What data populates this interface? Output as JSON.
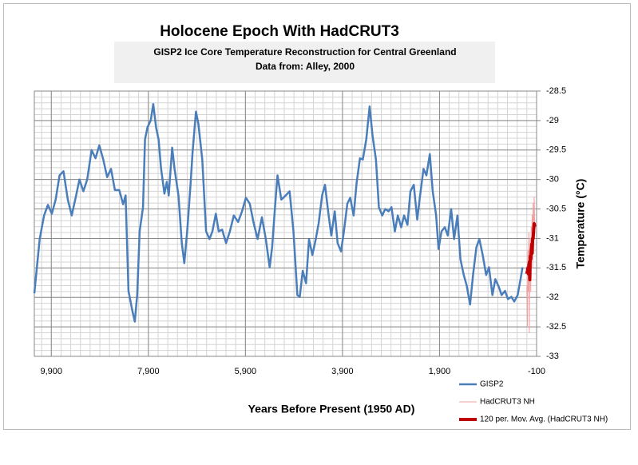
{
  "chart_data": {
    "type": "line",
    "title": "Holocene Epoch With HadCRUT3",
    "subtitle": [
      "GISP2 Ice Core Temperature Reconstruction for Central Greenland",
      "Data from: Alley, 2000"
    ],
    "x_label": "Years Before Present (1950 AD)",
    "y_label": "Temperature (°C)",
    "xlim": [
      10250,
      -100
    ],
    "xticks": [
      {
        "value": 9900,
        "label": "9,900"
      },
      {
        "value": 7900,
        "label": "7,900"
      },
      {
        "value": 5900,
        "label": "5,900"
      },
      {
        "value": 3900,
        "label": "3,900"
      },
      {
        "value": 1900,
        "label": "1,900"
      },
      -100
    ],
    "ylim": [
      -33,
      -28.5
    ],
    "yticks": [
      -28.5,
      -29,
      -29.5,
      -30,
      -30.5,
      -31,
      -31.5,
      -32,
      -32.5,
      -33
    ],
    "y_axis_side": "right",
    "grid": true,
    "legend": "bottom-right",
    "series": [
      {
        "name": "GISP2",
        "color": "#4a7ebb",
        "width": 2.5,
        "x": [
          10250,
          10140,
          10050,
          9970,
          9890,
          9810,
          9730,
          9650,
          9560,
          9480,
          9400,
          9320,
          9240,
          9160,
          9070,
          8990,
          8910,
          8830,
          8750,
          8670,
          8590,
          8500,
          8420,
          8370,
          8310,
          8230,
          8180,
          8130,
          8080,
          8010,
          7970,
          7920,
          7850,
          7800,
          7740,
          7690,
          7640,
          7570,
          7520,
          7480,
          7410,
          7360,
          7280,
          7210,
          7160,
          7100,
          7030,
          6990,
          6920,
          6870,
          6790,
          6710,
          6640,
          6580,
          6510,
          6450,
          6380,
          6300,
          6220,
          6140,
          6050,
          5970,
          5890,
          5810,
          5730,
          5650,
          5560,
          5480,
          5400,
          5350,
          5290,
          5240,
          5160,
          5070,
          4990,
          4910,
          4830,
          4780,
          4720,
          4650,
          4590,
          4520,
          4450,
          4390,
          4320,
          4260,
          4190,
          4130,
          4060,
          4000,
          3930,
          3870,
          3800,
          3740,
          3670,
          3610,
          3540,
          3480,
          3410,
          3340,
          3280,
          3210,
          3150,
          3080,
          3020,
          2950,
          2890,
          2820,
          2760,
          2690,
          2630,
          2560,
          2500,
          2430,
          2360,
          2300,
          2230,
          2170,
          2100,
          2040,
          1970,
          1920,
          1860,
          1790,
          1730,
          1660,
          1600,
          1530,
          1470,
          1400,
          1340,
          1270,
          1210,
          1140,
          1080,
          1010,
          940,
          880,
          810,
          750,
          680,
          620,
          550,
          490,
          420,
          360,
          290,
          230,
          190
        ],
        "values": [
          -31.93,
          -31.01,
          -30.61,
          -30.43,
          -30.58,
          -30.34,
          -29.93,
          -29.86,
          -30.34,
          -30.61,
          -30.31,
          -30.0,
          -30.2,
          -30.0,
          -29.5,
          -29.64,
          -29.42,
          -29.66,
          -29.96,
          -29.82,
          -30.18,
          -30.18,
          -30.42,
          -30.27,
          -31.89,
          -32.23,
          -32.41,
          -31.96,
          -30.88,
          -30.47,
          -29.32,
          -29.12,
          -28.99,
          -28.72,
          -29.12,
          -29.32,
          -29.8,
          -30.24,
          -30.04,
          -30.27,
          -29.46,
          -29.82,
          -30.27,
          -31.08,
          -31.42,
          -30.88,
          -30.07,
          -29.55,
          -28.85,
          -29.05,
          -29.66,
          -30.88,
          -31.01,
          -30.88,
          -30.58,
          -30.88,
          -30.85,
          -31.08,
          -30.88,
          -30.61,
          -30.72,
          -30.54,
          -30.31,
          -30.41,
          -30.74,
          -31.01,
          -30.64,
          -31.01,
          -31.49,
          -31.15,
          -30.47,
          -29.93,
          -30.34,
          -30.27,
          -30.2,
          -30.88,
          -31.96,
          -31.99,
          -31.55,
          -31.76,
          -31.01,
          -31.28,
          -31.01,
          -30.74,
          -30.27,
          -30.09,
          -30.58,
          -30.95,
          -30.54,
          -31.08,
          -31.22,
          -30.88,
          -30.41,
          -30.31,
          -30.61,
          -30.07,
          -29.64,
          -29.66,
          -29.32,
          -28.76,
          -29.26,
          -29.66,
          -30.47,
          -30.61,
          -30.5,
          -30.54,
          -30.47,
          -30.88,
          -30.61,
          -30.81,
          -30.61,
          -30.77,
          -30.2,
          -30.09,
          -30.68,
          -30.27,
          -29.82,
          -29.93,
          -29.57,
          -30.2,
          -30.61,
          -31.18,
          -30.88,
          -30.81,
          -30.95,
          -30.5,
          -31.01,
          -30.61,
          -31.35,
          -31.62,
          -31.8,
          -32.12,
          -31.62,
          -31.15,
          -31.01,
          -31.28,
          -31.62,
          -31.49,
          -31.96,
          -31.69,
          -31.82,
          -31.96,
          -31.89,
          -32.03,
          -31.99,
          -32.07,
          -31.96,
          -31.69,
          -31.49
        ]
      },
      {
        "name": "HadCRUT3  NH",
        "color": "#f2a0a0",
        "width": 1,
        "x": [
          100,
          90,
          80,
          70,
          60,
          50,
          40,
          30,
          20,
          10,
          0,
          -10,
          -20,
          -30,
          -40,
          -50,
          -60
        ],
        "values": [
          -31.8,
          -32.5,
          -31.2,
          -31.9,
          -30.9,
          -32.6,
          -31.4,
          -31.0,
          -31.9,
          -30.8,
          -31.3,
          -30.6,
          -31.5,
          -30.4,
          -31.0,
          -30.3,
          -30.8
        ]
      },
      {
        "name": "120 per. Mov. Avg. (HadCRUT3  NH)",
        "color": "#c00000",
        "width": 4,
        "x": [
          100,
          90,
          80,
          70,
          60,
          50,
          40,
          30,
          20,
          10,
          0,
          -10,
          -20,
          -30,
          -40,
          -50,
          -60
        ],
        "values": [
          -31.6,
          -31.55,
          -31.5,
          -31.6,
          -31.45,
          -31.4,
          -31.7,
          -31.3,
          -31.35,
          -31.2,
          -31.1,
          -31.25,
          -31.0,
          -31.0,
          -30.85,
          -30.75,
          -30.8
        ]
      }
    ]
  }
}
